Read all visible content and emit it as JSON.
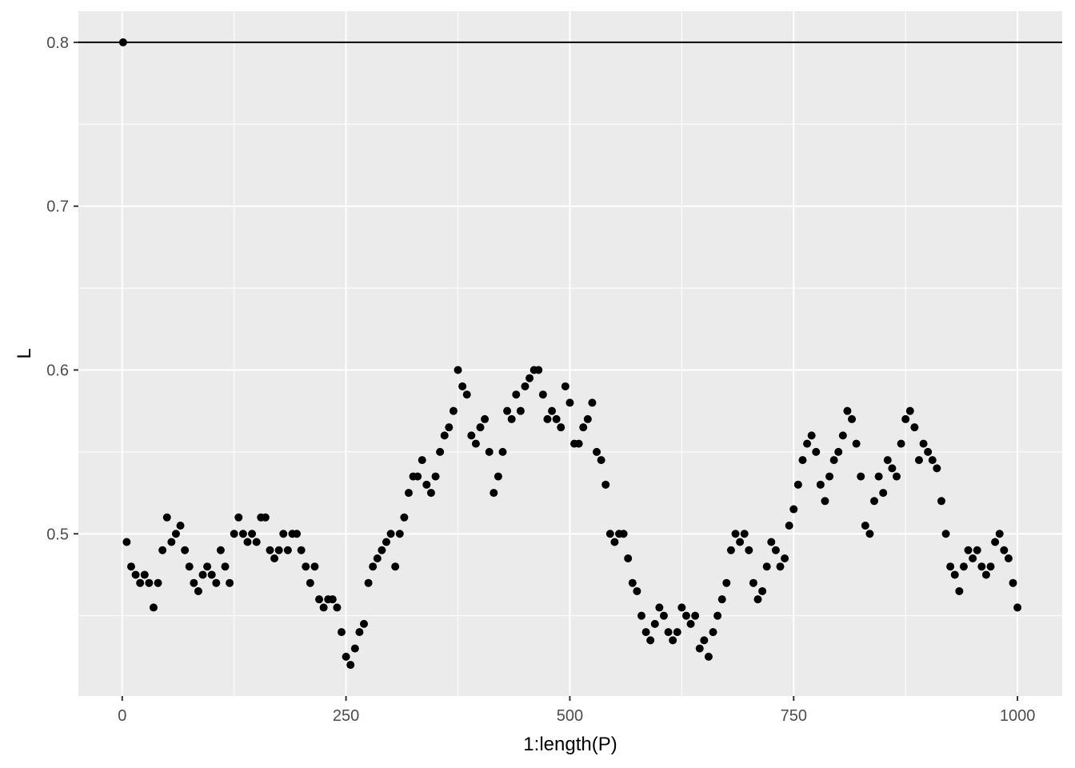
{
  "chart_data": {
    "type": "scatter",
    "x_label": "1:length(P)",
    "y_label": "L",
    "xlim": [
      -48.95,
      1049.95
    ],
    "ylim": [
      0.401,
      0.819
    ],
    "xticks": [
      0,
      250,
      500,
      750,
      1000
    ],
    "yticks": [
      0.5,
      0.6,
      0.7,
      0.8
    ],
    "xminor": [
      125,
      375,
      625,
      875
    ],
    "yminor": [
      0.45,
      0.55,
      0.65,
      0.75
    ],
    "grid": true,
    "hline": 0.8,
    "color": "#000000",
    "x": [
      1,
      5,
      10,
      15,
      20,
      25,
      30,
      35,
      40,
      45,
      50,
      55,
      60,
      65,
      70,
      75,
      80,
      85,
      90,
      95,
      100,
      105,
      110,
      115,
      120,
      125,
      130,
      135,
      140,
      145,
      150,
      155,
      160,
      165,
      170,
      175,
      180,
      185,
      190,
      195,
      200,
      205,
      210,
      215,
      220,
      225,
      230,
      235,
      240,
      245,
      250,
      255,
      260,
      265,
      270,
      275,
      280,
      285,
      290,
      295,
      300,
      305,
      310,
      315,
      320,
      325,
      330,
      335,
      340,
      345,
      350,
      355,
      360,
      365,
      370,
      375,
      380,
      385,
      390,
      395,
      400,
      405,
      410,
      415,
      420,
      425,
      430,
      435,
      440,
      445,
      450,
      455,
      460,
      465,
      470,
      475,
      480,
      485,
      490,
      495,
      500,
      505,
      510,
      515,
      520,
      525,
      530,
      535,
      540,
      545,
      550,
      555,
      560,
      565,
      570,
      575,
      580,
      585,
      590,
      595,
      600,
      605,
      610,
      615,
      620,
      625,
      630,
      635,
      640,
      645,
      650,
      655,
      660,
      665,
      670,
      675,
      680,
      685,
      690,
      695,
      700,
      705,
      710,
      715,
      720,
      725,
      730,
      735,
      740,
      745,
      750,
      755,
      760,
      765,
      770,
      775,
      780,
      785,
      790,
      795,
      800,
      805,
      810,
      815,
      820,
      825,
      830,
      835,
      840,
      845,
      850,
      855,
      860,
      865,
      870,
      875,
      880,
      885,
      890,
      895,
      900,
      905,
      910,
      915,
      920,
      925,
      930,
      935,
      940,
      945,
      950,
      955,
      960,
      965,
      970,
      975,
      980,
      985,
      990,
      995,
      1000
    ],
    "y": [
      0.8,
      0.495,
      0.48,
      0.475,
      0.47,
      0.475,
      0.47,
      0.455,
      0.47,
      0.49,
      0.51,
      0.495,
      0.5,
      0.505,
      0.49,
      0.48,
      0.47,
      0.465,
      0.475,
      0.48,
      0.475,
      0.47,
      0.49,
      0.48,
      0.47,
      0.5,
      0.51,
      0.5,
      0.495,
      0.5,
      0.495,
      0.51,
      0.51,
      0.49,
      0.485,
      0.49,
      0.5,
      0.49,
      0.5,
      0.5,
      0.49,
      0.48,
      0.47,
      0.48,
      0.46,
      0.455,
      0.46,
      0.46,
      0.455,
      0.44,
      0.425,
      0.42,
      0.43,
      0.44,
      0.445,
      0.47,
      0.48,
      0.485,
      0.49,
      0.495,
      0.5,
      0.48,
      0.5,
      0.51,
      0.525,
      0.535,
      0.535,
      0.545,
      0.53,
      0.525,
      0.535,
      0.55,
      0.56,
      0.565,
      0.575,
      0.6,
      0.59,
      0.585,
      0.56,
      0.555,
      0.565,
      0.57,
      0.55,
      0.525,
      0.535,
      0.55,
      0.575,
      0.57,
      0.585,
      0.575,
      0.59,
      0.595,
      0.6,
      0.6,
      0.585,
      0.57,
      0.575,
      0.57,
      0.565,
      0.59,
      0.58,
      0.555,
      0.555,
      0.565,
      0.57,
      0.58,
      0.55,
      0.545,
      0.53,
      0.5,
      0.495,
      0.5,
      0.5,
      0.485,
      0.47,
      0.465,
      0.45,
      0.44,
      0.435,
      0.445,
      0.455,
      0.45,
      0.44,
      0.435,
      0.44,
      0.455,
      0.45,
      0.445,
      0.45,
      0.43,
      0.435,
      0.425,
      0.44,
      0.45,
      0.46,
      0.47,
      0.49,
      0.5,
      0.495,
      0.5,
      0.49,
      0.47,
      0.46,
      0.465,
      0.48,
      0.495,
      0.49,
      0.48,
      0.485,
      0.505,
      0.515,
      0.53,
      0.545,
      0.555,
      0.56,
      0.55,
      0.53,
      0.52,
      0.535,
      0.545,
      0.55,
      0.56,
      0.575,
      0.57,
      0.555,
      0.535,
      0.505,
      0.5,
      0.52,
      0.535,
      0.525,
      0.545,
      0.54,
      0.535,
      0.555,
      0.57,
      0.575,
      0.565,
      0.545,
      0.555,
      0.55,
      0.545,
      0.54,
      0.52,
      0.5,
      0.48,
      0.475,
      0.465,
      0.48,
      0.49,
      0.485,
      0.49,
      0.48,
      0.475,
      0.48,
      0.495,
      0.5,
      0.49,
      0.485,
      0.47,
      0.455
    ]
  }
}
